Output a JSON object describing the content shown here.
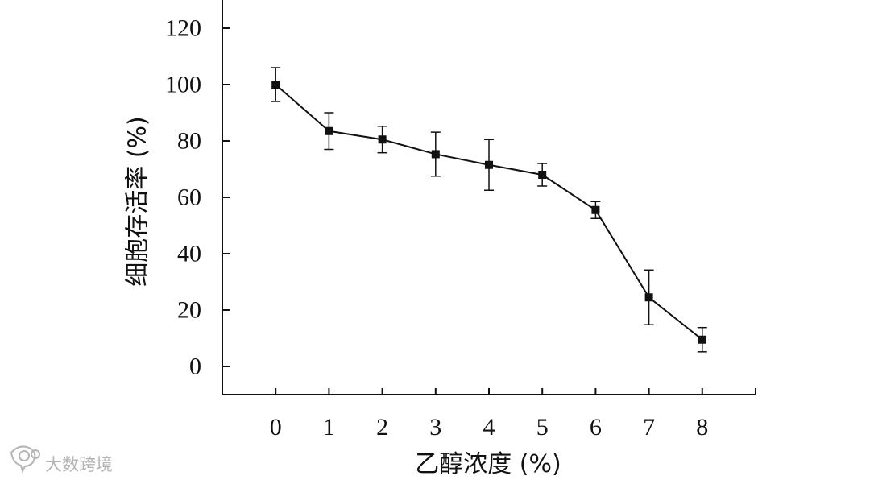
{
  "chart_data": {
    "type": "line",
    "title": "",
    "xlabel": "乙醇浓度 (%)",
    "ylabel": "细胞存活率 (%)",
    "x": [
      0,
      1,
      2,
      3,
      4,
      5,
      6,
      7,
      8
    ],
    "xticks": [
      "0",
      "1",
      "2",
      "3",
      "4",
      "5",
      "6",
      "7",
      "8"
    ],
    "xlim": [
      -1,
      9
    ],
    "yticks": [
      "0",
      "20",
      "40",
      "60",
      "80",
      "100",
      "120"
    ],
    "ylim": [
      -10,
      130
    ],
    "series": [
      {
        "values": [
          100,
          83.5,
          80.5,
          75.3,
          71.5,
          68,
          55.5,
          24.5,
          9.5
        ],
        "error": [
          6,
          6.5,
          4.7,
          7.8,
          9,
          4,
          3,
          9.7,
          4.3
        ],
        "color": "#111111",
        "marker": "square"
      }
    ],
    "grid": false,
    "legend": "none"
  },
  "watermark": {
    "text": "大数跨境",
    "icon": "chat-bubble-icon"
  }
}
